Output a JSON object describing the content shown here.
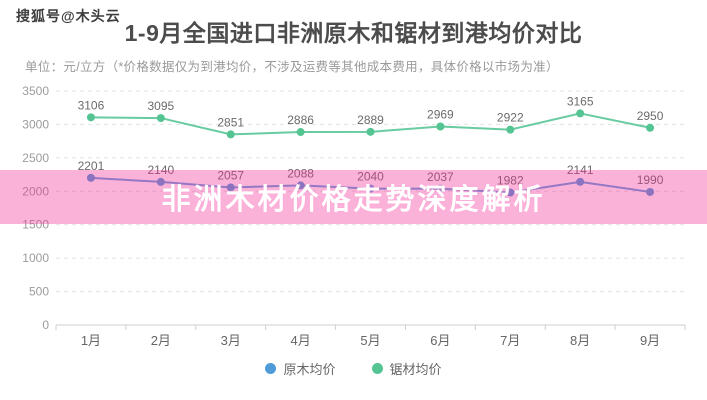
{
  "watermark": "搜狐号@木头云",
  "header": {
    "title": "1-9月全国进口非洲原木和锯材到港均价对比",
    "subtitle": "单位：元/立方（*价格数据仅为到港均价，不涉及运费等其他成本费用，具体价格以市场为准）"
  },
  "overlay_banner": {
    "text": "非洲木材价格走势深度解析",
    "bg_color": "rgba(243,47,152,0.37)",
    "text_color": "#ffffff"
  },
  "chart_data": {
    "type": "line",
    "categories": [
      "1月",
      "2月",
      "3月",
      "4月",
      "5月",
      "6月",
      "7月",
      "8月",
      "9月"
    ],
    "series": [
      {
        "name": "原木均价",
        "color": "#5da3de",
        "dot_color": "#4f9bd8",
        "values": [
          2201,
          2140,
          2057,
          2088,
          2040,
          2037,
          1982,
          2141,
          1990
        ]
      },
      {
        "name": "锯材均价",
        "color": "#68cba1",
        "dot_color": "#55c493",
        "values": [
          3106,
          3095,
          2851,
          2886,
          2889,
          2969,
          2922,
          3165,
          2950
        ]
      }
    ],
    "ylim": [
      0,
      3500
    ],
    "ytick_step": 500,
    "yticks": [
      "0",
      "500",
      "1000",
      "1500",
      "2000",
      "2500",
      "3000",
      "3500"
    ],
    "grid": "dashed gridlines on",
    "legend_position": "bottom",
    "data_labels": "shown above every point",
    "colors": {
      "grid_line": "#e2e2e2",
      "axis_line": "#cfcfcf",
      "y_label": "#9c9c9c",
      "x_label": "#666666",
      "data_label": "#6b6b6b"
    }
  }
}
